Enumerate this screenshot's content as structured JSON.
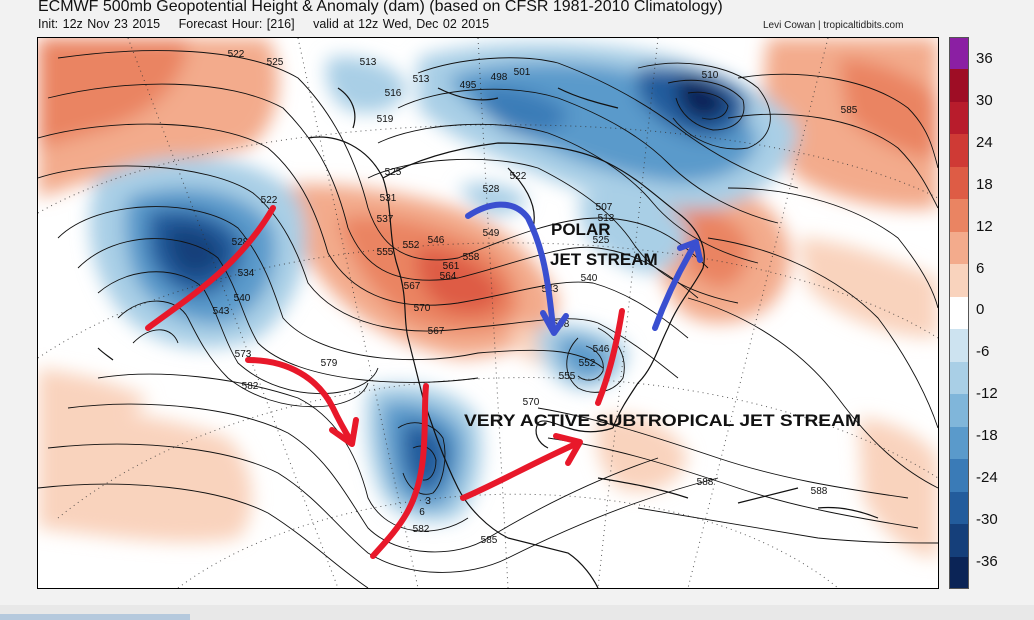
{
  "header": {
    "title": "ECMWF 500mb Geopotential Height & Anomaly (dam) (based on CFSR 1981-2010 Climatology)",
    "init": "Init: 12z Nov 23 2015",
    "forecast_hour": "Forecast Hour: [216]",
    "valid": "valid at 12z Wed, Dec 02 2015",
    "credit": "Levi Cowan | tropicaltidbits.com"
  },
  "colorbar": {
    "labels": [
      "36",
      "30",
      "24",
      "18",
      "12",
      "6",
      "0",
      "-6",
      "-12",
      "-18",
      "-24",
      "-30",
      "-36"
    ],
    "colors": [
      "#8b1fa3",
      "#9e0d25",
      "#b81c2c",
      "#cf3a35",
      "#de5c45",
      "#ea8462",
      "#f3ab8c",
      "#f9d3bd",
      "#ffffff",
      "#cde3f0",
      "#a9cfe6",
      "#80b6da",
      "#5a9acb",
      "#3a7bb7",
      "#235c9c",
      "#153f7a",
      "#0b2456"
    ]
  },
  "map": {
    "contour_labels": [
      "522",
      "525",
      "513",
      "513",
      "495",
      "498",
      "501",
      "510",
      "516",
      "519",
      "585",
      "525",
      "522",
      "528",
      "531",
      "537",
      "507",
      "513",
      "525",
      "522",
      "528",
      "534",
      "540",
      "543",
      "549",
      "552",
      "546",
      "555",
      "558",
      "561",
      "564",
      "567",
      "570",
      "567",
      "540",
      "543",
      "546",
      "552",
      "555",
      "558",
      "573",
      "579",
      "582",
      "570",
      "582",
      "585",
      "588",
      "588",
      "3",
      "6"
    ],
    "annotations": [
      "POLAR",
      "JET STREAM",
      "VERY ACTIVE SUBTROPICAL JET STREAM"
    ],
    "arrow_colors": {
      "red": "#e8182a",
      "blue": "#3a4fd0"
    }
  }
}
